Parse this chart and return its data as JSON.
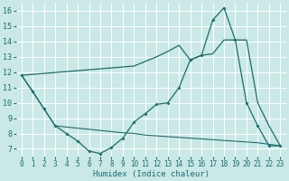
{
  "xlabel": "Humidex (Indice chaleur)",
  "xlim": [
    -0.5,
    23.5
  ],
  "ylim": [
    6.5,
    16.5
  ],
  "yticks": [
    7,
    8,
    9,
    10,
    11,
    12,
    13,
    14,
    15,
    16
  ],
  "xticks": [
    0,
    1,
    2,
    3,
    4,
    5,
    6,
    7,
    8,
    9,
    10,
    11,
    12,
    13,
    14,
    15,
    16,
    17,
    18,
    19,
    20,
    21,
    22,
    23
  ],
  "bg_color": "#c9e8e6",
  "grid_color": "#ffffff",
  "line_color": "#1a6e6e",
  "line1_x": [
    0,
    1,
    2,
    3,
    4,
    5,
    6,
    7,
    8,
    9,
    10,
    11,
    12,
    13,
    14,
    15,
    16,
    17,
    18,
    19,
    20,
    21,
    22,
    23
  ],
  "line1_y": [
    11.8,
    10.75,
    9.6,
    8.5,
    8.0,
    7.5,
    6.85,
    6.7,
    7.1,
    7.7,
    8.75,
    9.3,
    9.9,
    10.0,
    11.0,
    12.8,
    13.1,
    15.4,
    16.2,
    14.1,
    10.0,
    8.5,
    7.2,
    7.2
  ],
  "line2_x": [
    0,
    10,
    11,
    12,
    13,
    14,
    15,
    16,
    17,
    18,
    19,
    20,
    21,
    22,
    23
  ],
  "line2_y": [
    11.8,
    12.4,
    12.7,
    13.0,
    13.35,
    13.75,
    12.8,
    13.1,
    13.2,
    14.1,
    14.1,
    14.1,
    10.0,
    8.5,
    7.2
  ],
  "line3_x": [
    0,
    2,
    3,
    9,
    10,
    11,
    12,
    13,
    14,
    15,
    16,
    17,
    18,
    19,
    20,
    21,
    22,
    23
  ],
  "line3_y": [
    11.8,
    9.6,
    8.5,
    8.05,
    8.0,
    7.9,
    7.85,
    7.8,
    7.75,
    7.7,
    7.65,
    7.6,
    7.55,
    7.5,
    7.45,
    7.4,
    7.3,
    7.2
  ]
}
